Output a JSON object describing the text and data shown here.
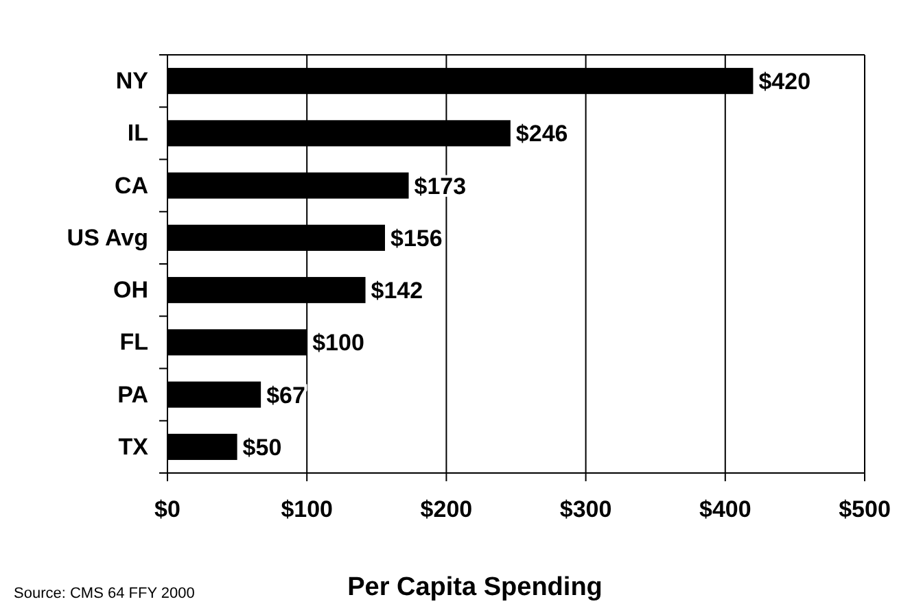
{
  "chart_data": {
    "type": "bar",
    "orientation": "horizontal",
    "xlabel": "Per Capita Spending",
    "categories": [
      "NY",
      "IL",
      "CA",
      "US Avg",
      "OH",
      "FL",
      "PA",
      "TX"
    ],
    "values": [
      420,
      246,
      173,
      156,
      142,
      100,
      67,
      50
    ],
    "value_labels": [
      "$420",
      "$246",
      "$173",
      "$156",
      "$142",
      "$100",
      "$67",
      "$50"
    ],
    "color": "#000000",
    "xlim": [
      0,
      500
    ],
    "xticks": [
      {
        "value": 0,
        "label": "$0"
      },
      {
        "value": 100,
        "label": "$100"
      },
      {
        "value": 200,
        "label": "$200"
      },
      {
        "value": 300,
        "label": "$300"
      },
      {
        "value": 400,
        "label": "$400"
      },
      {
        "value": 500,
        "label": "$500"
      }
    ],
    "grid": "x",
    "annotations": [
      "Source: CMS 64 FFY 2000"
    ]
  }
}
